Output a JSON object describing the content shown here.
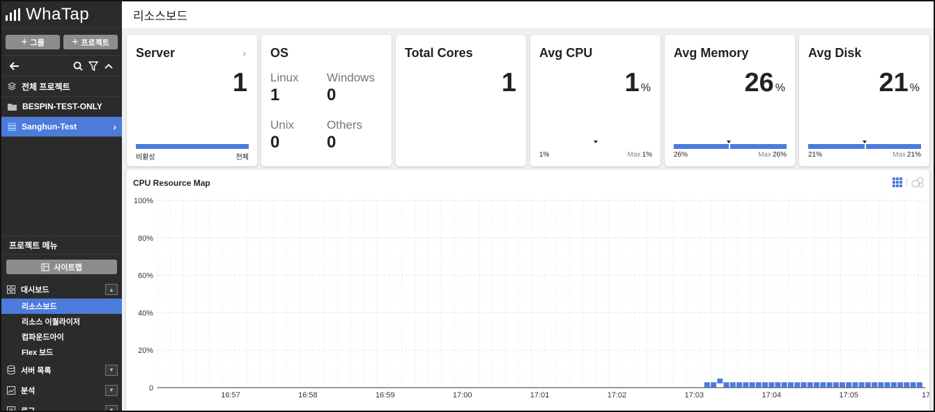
{
  "brand": {
    "name": "WhaTap"
  },
  "sidebar": {
    "buttons": {
      "group": "그룹",
      "project": "프로젝트"
    },
    "projects": [
      {
        "label": "전체 프로젝트",
        "icon": "layers-icon"
      },
      {
        "label": "BESPIN-TEST-ONLY",
        "icon": "folder-icon"
      },
      {
        "label": "Sanghun-Test",
        "icon": "server-icon",
        "active": true
      }
    ],
    "menu_title": "프로젝트 메뉴",
    "sitemap": "사이트맵",
    "nav": {
      "dashboard": "대시보드",
      "subs": [
        "리소스보드",
        "리소스 이퀄라이저",
        "컴파운드아이",
        "Flex 보드"
      ],
      "server_list": "서버 목록",
      "analysis": "분석",
      "log": "로그"
    }
  },
  "header": {
    "title": "리소스보드"
  },
  "cards": {
    "server": {
      "title": "Server",
      "value": "1",
      "foot_left": "비활성",
      "foot_right": "전체",
      "active_fraction": 1.0
    },
    "os": {
      "title": "OS",
      "items": [
        {
          "label": "Linux",
          "value": "1"
        },
        {
          "label": "Windows",
          "value": "0"
        },
        {
          "label": "Unix",
          "value": "0"
        },
        {
          "label": "Others",
          "value": "0"
        }
      ]
    },
    "cores": {
      "title": "Total Cores",
      "value": "1"
    },
    "cpu": {
      "title": "Avg CPU",
      "value": "1",
      "unit": "%",
      "foot_left": "1%",
      "max_label": "Max",
      "max_value": "1%",
      "fraction": 0.01
    },
    "memory": {
      "title": "Avg Memory",
      "value": "26",
      "unit": "%",
      "foot_left": "26%",
      "max_label": "Max",
      "max_value": "26%",
      "fraction": 0.26
    },
    "disk": {
      "title": "Avg Disk",
      "value": "21",
      "unit": "%",
      "foot_left": "21%",
      "max_label": "Max",
      "max_value": "21%",
      "fraction": 0.21
    }
  },
  "map": {
    "title": "CPU Resource Map",
    "icons": [
      "grid-view-icon",
      "bubble-view-icon"
    ],
    "accent": "#4c7bdc"
  },
  "chart_data": {
    "type": "scatter",
    "title": "CPU Resource Map",
    "y_ticks": [
      "100%",
      "80%",
      "60%",
      "40%",
      "20%",
      "0"
    ],
    "x_ticks": [
      "16:57",
      "16:58",
      "16:59",
      "17:00",
      "17:01",
      "17:02",
      "17:03",
      "17:04",
      "17:05",
      "17"
    ],
    "ylim": [
      0,
      100
    ],
    "grid": true,
    "series": [
      {
        "points": [
          {
            "x": "17:03:10",
            "y": 1
          },
          {
            "x": "17:03:15",
            "y": 1
          },
          {
            "x": "17:03:20",
            "y": 3
          },
          {
            "x": "17:03:25",
            "y": 1
          },
          {
            "x": "17:03:30",
            "y": 1
          },
          {
            "x": "17:03:35",
            "y": 1
          },
          {
            "x": "17:03:40",
            "y": 1
          },
          {
            "x": "17:03:45",
            "y": 1
          },
          {
            "x": "17:03:50",
            "y": 1
          },
          {
            "x": "17:03:55",
            "y": 1
          },
          {
            "x": "17:04:00",
            "y": 1
          },
          {
            "x": "17:04:05",
            "y": 1
          },
          {
            "x": "17:04:10",
            "y": 1
          },
          {
            "x": "17:04:15",
            "y": 1
          },
          {
            "x": "17:04:20",
            "y": 1
          },
          {
            "x": "17:04:25",
            "y": 1
          },
          {
            "x": "17:04:30",
            "y": 1
          },
          {
            "x": "17:04:35",
            "y": 1
          },
          {
            "x": "17:04:40",
            "y": 1
          },
          {
            "x": "17:04:45",
            "y": 1
          },
          {
            "x": "17:04:50",
            "y": 1
          },
          {
            "x": "17:04:55",
            "y": 1
          },
          {
            "x": "17:05:00",
            "y": 1
          },
          {
            "x": "17:05:05",
            "y": 1
          },
          {
            "x": "17:05:10",
            "y": 1
          },
          {
            "x": "17:05:15",
            "y": 1
          },
          {
            "x": "17:05:20",
            "y": 1
          },
          {
            "x": "17:05:25",
            "y": 1
          },
          {
            "x": "17:05:30",
            "y": 1
          },
          {
            "x": "17:05:35",
            "y": 1
          },
          {
            "x": "17:05:40",
            "y": 1
          },
          {
            "x": "17:05:45",
            "y": 1
          },
          {
            "x": "17:05:50",
            "y": 1
          },
          {
            "x": "17:05:55",
            "y": 1
          }
        ]
      }
    ]
  }
}
